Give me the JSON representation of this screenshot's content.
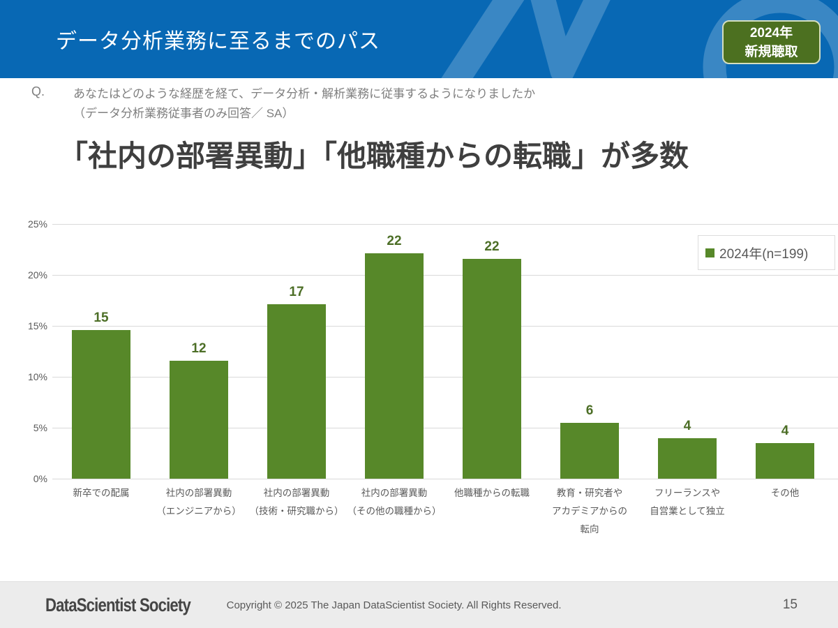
{
  "header": {
    "title": "データ分析業務に至るまでのパス",
    "badge": {
      "line1": "2024年",
      "line2": "新規聴取"
    }
  },
  "question": {
    "prefix": "Q.",
    "line1": "あなたはどのような経歴を経て、データ分析・解析業務に従事するようになりましたか",
    "line2": "（データ分析業務従事者のみ回答／ SA）"
  },
  "chart_data": {
    "type": "bar",
    "title": "「社内の部署異動」「他職種からの転職」が多数",
    "legend": {
      "label": "2024年(n=199)",
      "position": "top-right",
      "swatch_color": "#578829"
    },
    "bar_color": "#578829",
    "value_label_color": "#4c6e26",
    "ylabel": "",
    "xlabel": "",
    "ylim": [
      0,
      25
    ],
    "grid": true,
    "yticks": [
      0,
      5,
      10,
      15,
      20,
      25
    ],
    "ytick_labels": [
      "0%",
      "5%",
      "10%",
      "15%",
      "20%",
      "25%"
    ],
    "categories": [
      [
        "新卒での配属"
      ],
      [
        "社内の部署異動",
        "（エンジニアから）"
      ],
      [
        "社内の部署異動",
        "（技術・研究職から）"
      ],
      [
        "社内の部署異動",
        "（その他の職種から）"
      ],
      [
        "他職種からの転職"
      ],
      [
        "教育・研究者や",
        "アカデミアからの",
        "転向"
      ],
      [
        "フリーランスや",
        "自営業として独立"
      ],
      [
        "その他"
      ]
    ],
    "value_labels": [
      15,
      12,
      17,
      22,
      22,
      6,
      4,
      4
    ],
    "values_percent": [
      14.6,
      11.6,
      17.1,
      22.1,
      21.6,
      5.5,
      4.0,
      3.5
    ]
  },
  "footer": {
    "logo": "DataScientist Society",
    "copyright": "Copyright © 2025 The Japan DataScientist Society. All Rights Reserved.",
    "page_number": "15"
  },
  "colors": {
    "header_bg": "#0868b4",
    "header_accent": "#3a87c4",
    "badge_bg": "#4c7020",
    "bar_green": "#578829"
  }
}
